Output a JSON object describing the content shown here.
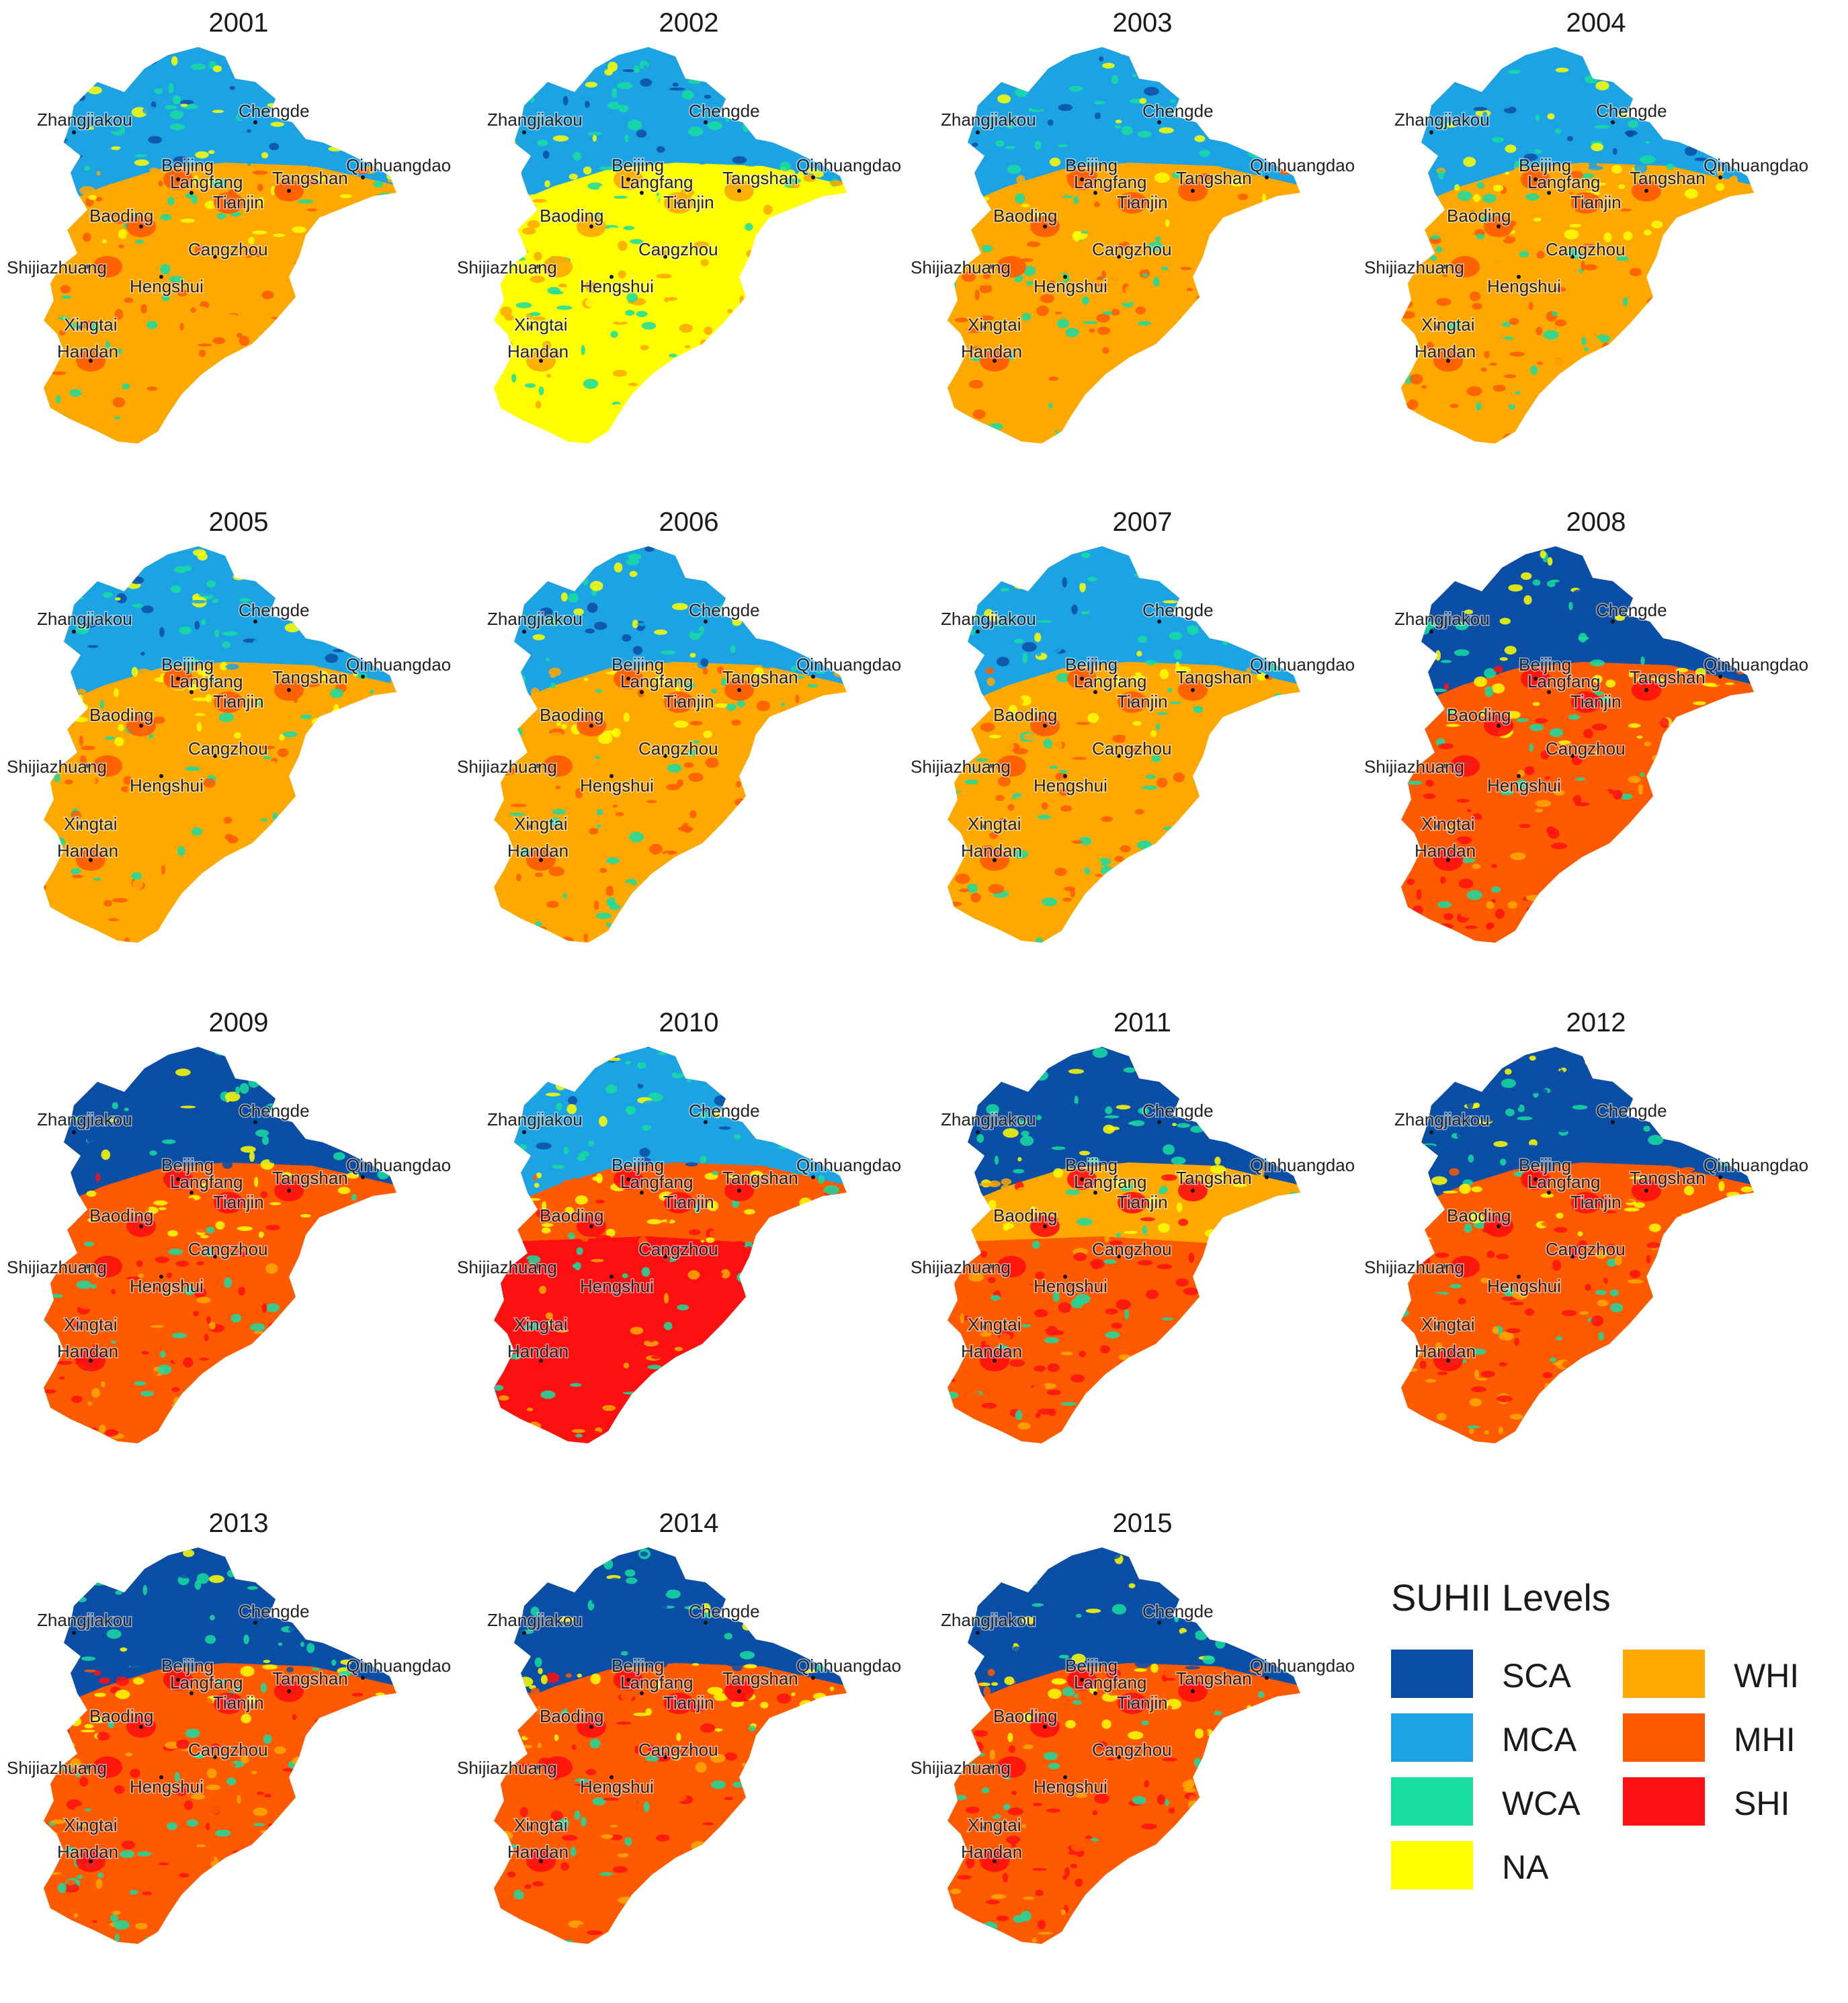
{
  "legend": {
    "title": "SUHII Levels",
    "items": [
      {
        "code": "SCA",
        "color": "#0a4ea6"
      },
      {
        "code": "MCA",
        "color": "#1ba3e3"
      },
      {
        "code": "WCA",
        "color": "#18dda0"
      },
      {
        "code": "NA",
        "color": "#ffff00"
      },
      {
        "code": "WHI",
        "color": "#ffa800"
      },
      {
        "code": "MHI",
        "color": "#ff5a00"
      },
      {
        "code": "SHI",
        "color": "#ff1010"
      }
    ]
  },
  "cities": [
    "Zhangjiakou",
    "Chengde",
    "Beijing",
    "Langfang",
    "Tangshan",
    "Qinhuangdao",
    "Tianjin",
    "Baoding",
    "Cangzhou",
    "Shijiazhuang",
    "Hengshui",
    "Xingtai",
    "Handan"
  ],
  "panels": [
    {
      "year": "2001",
      "north": "MCA",
      "center": "WHI",
      "south": "WHI",
      "hot": "MHI"
    },
    {
      "year": "2002",
      "north": "MCA",
      "center": "NA",
      "south": "NA",
      "hot": "WHI"
    },
    {
      "year": "2003",
      "north": "MCA",
      "center": "WHI",
      "south": "WHI",
      "hot": "MHI"
    },
    {
      "year": "2004",
      "north": "MCA",
      "center": "WHI",
      "south": "WHI",
      "hot": "MHI"
    },
    {
      "year": "2005",
      "north": "MCA",
      "center": "WHI",
      "south": "WHI",
      "hot": "MHI"
    },
    {
      "year": "2006",
      "north": "MCA",
      "center": "WHI",
      "south": "WHI",
      "hot": "MHI"
    },
    {
      "year": "2007",
      "north": "MCA",
      "center": "WHI",
      "south": "WHI",
      "hot": "MHI"
    },
    {
      "year": "2008",
      "north": "SCA",
      "center": "MHI",
      "south": "MHI",
      "hot": "SHI"
    },
    {
      "year": "2009",
      "north": "SCA",
      "center": "MHI",
      "south": "MHI",
      "hot": "SHI"
    },
    {
      "year": "2010",
      "north": "MCA",
      "center": "MHI",
      "south": "SHI",
      "hot": "SHI"
    },
    {
      "year": "2011",
      "north": "SCA",
      "center": "WHI",
      "south": "MHI",
      "hot": "SHI"
    },
    {
      "year": "2012",
      "north": "SCA",
      "center": "MHI",
      "south": "MHI",
      "hot": "SHI"
    },
    {
      "year": "2013",
      "north": "SCA",
      "center": "MHI",
      "south": "MHI",
      "hot": "SHI"
    },
    {
      "year": "2014",
      "north": "SCA",
      "center": "MHI",
      "south": "MHI",
      "hot": "SHI"
    },
    {
      "year": "2015",
      "north": "SCA",
      "center": "MHI",
      "south": "MHI",
      "hot": "SHI"
    }
  ]
}
